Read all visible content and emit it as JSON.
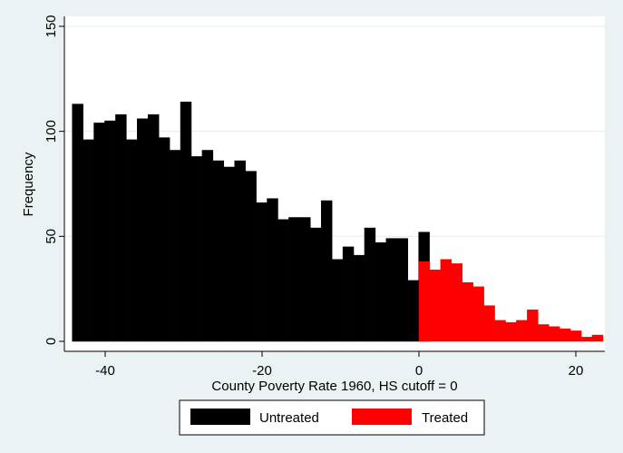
{
  "chart_data": {
    "type": "bar",
    "xlabel": "County Poverty Rate 1960, HS cutoff = 0",
    "ylabel": "Frequency",
    "xlim": [
      -44.5,
      22.5
    ],
    "ylim": [
      0,
      150
    ],
    "xticks": [
      -40,
      -20,
      0,
      20
    ],
    "yticks": [
      0,
      50,
      100,
      150
    ],
    "grid": true,
    "legend_position": "bottom",
    "bin_width": 1.38,
    "series": [
      {
        "name": "Untreated",
        "color": "#000000",
        "bins": [
          {
            "x0": -44.2,
            "value": 113
          },
          {
            "x0": -42.82,
            "value": 96
          },
          {
            "x0": -41.44,
            "value": 104
          },
          {
            "x0": -40.06,
            "value": 105
          },
          {
            "x0": -38.68,
            "value": 108
          },
          {
            "x0": -37.3,
            "value": 96
          },
          {
            "x0": -35.92,
            "value": 106
          },
          {
            "x0": -34.54,
            "value": 108
          },
          {
            "x0": -33.16,
            "value": 97
          },
          {
            "x0": -31.78,
            "value": 91
          },
          {
            "x0": -30.4,
            "value": 114
          },
          {
            "x0": -29.02,
            "value": 88
          },
          {
            "x0": -27.64,
            "value": 91
          },
          {
            "x0": -26.26,
            "value": 86
          },
          {
            "x0": -24.88,
            "value": 83
          },
          {
            "x0": -23.5,
            "value": 86
          },
          {
            "x0": -22.12,
            "value": 81
          },
          {
            "x0": -20.74,
            "value": 66
          },
          {
            "x0": -19.36,
            "value": 68
          },
          {
            "x0": -17.98,
            "value": 58
          },
          {
            "x0": -16.6,
            "value": 59
          },
          {
            "x0": -15.22,
            "value": 59
          },
          {
            "x0": -13.84,
            "value": 54
          },
          {
            "x0": -12.46,
            "value": 67
          },
          {
            "x0": -11.08,
            "value": 39
          },
          {
            "x0": -9.7,
            "value": 45
          },
          {
            "x0": -8.32,
            "value": 41
          },
          {
            "x0": -6.94,
            "value": 54
          },
          {
            "x0": -5.56,
            "value": 47
          },
          {
            "x0": -4.18,
            "value": 49
          },
          {
            "x0": -2.8,
            "value": 49
          },
          {
            "x0": -1.42,
            "value": 29
          },
          {
            "x0": -0.04,
            "value": 52
          }
        ]
      },
      {
        "name": "Treated",
        "color": "#ff0000",
        "bins": [
          {
            "x0": 0.0,
            "value": 38
          },
          {
            "x0": 1.38,
            "value": 34
          },
          {
            "x0": 2.76,
            "value": 39
          },
          {
            "x0": 4.14,
            "value": 37
          },
          {
            "x0": 5.52,
            "value": 28
          },
          {
            "x0": 6.9,
            "value": 26
          },
          {
            "x0": 8.28,
            "value": 17
          },
          {
            "x0": 9.66,
            "value": 10
          },
          {
            "x0": 11.04,
            "value": 9
          },
          {
            "x0": 12.42,
            "value": 10
          },
          {
            "x0": 13.8,
            "value": 15
          },
          {
            "x0": 15.18,
            "value": 8
          },
          {
            "x0": 16.56,
            "value": 7
          },
          {
            "x0": 17.94,
            "value": 6
          },
          {
            "x0": 19.32,
            "value": 5
          },
          {
            "x0": 20.7,
            "value": 2
          },
          {
            "x0": 22.08,
            "value": 3
          }
        ]
      }
    ]
  }
}
